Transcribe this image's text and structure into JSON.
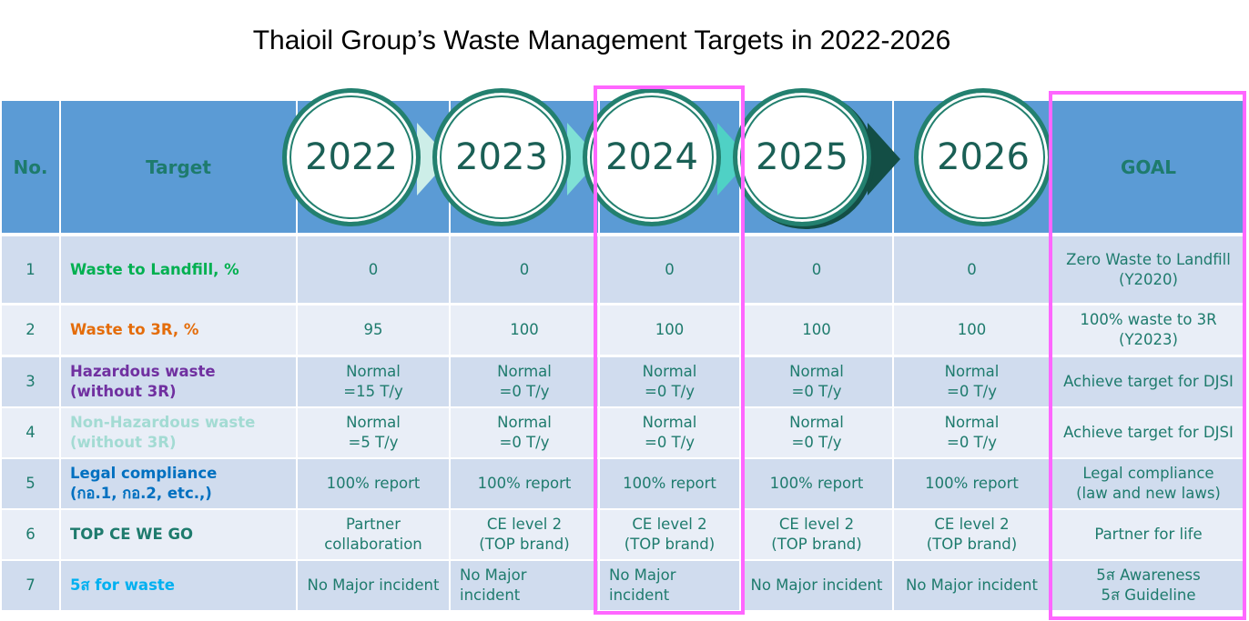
{
  "title": "Thaioil Group’s Waste Management Targets in 2022-2026",
  "header": {
    "no": "No.",
    "target": "Target",
    "years": [
      "2022",
      "2023",
      "2024",
      "2025",
      "2026"
    ],
    "goal": "GOAL"
  },
  "colors": {
    "header_bg": "#5b9bd5",
    "row_odd": "#d0dcee",
    "row_even": "#e9eef7",
    "text": "#1e7b6d",
    "highlight": "#ff66ff"
  },
  "rows": [
    {
      "no": "1",
      "target": "Waste to Landfill, %",
      "target_color": "#00b050",
      "values": [
        "0",
        "0",
        "0",
        "0",
        "0"
      ],
      "goal": "Zero Waste to Landfill\n(Y2020)"
    },
    {
      "no": "2",
      "target": "Waste to 3R, %",
      "target_color": "#e46c0a",
      "values": [
        "95",
        "100",
        "100",
        "100",
        "100"
      ],
      "goal": "100% waste to 3R\n(Y2023)"
    },
    {
      "no": "3",
      "target": "Hazardous waste\n(without 3R)",
      "target_color": "#7030a0",
      "values": [
        "Normal\n=15 T/y",
        "Normal\n=0 T/y",
        "Normal\n=0 T/y",
        "Normal\n=0 T/y",
        "Normal\n=0 T/y"
      ],
      "goal": "Achieve target for DJSI"
    },
    {
      "no": "4",
      "target": "Non-Hazardous waste\n(without 3R)",
      "target_color": "#a3dbd3",
      "values": [
        "Normal\n=5 T/y",
        "Normal\n=0 T/y",
        "Normal\n=0 T/y",
        "Normal\n=0 T/y",
        "Normal\n=0 T/y"
      ],
      "goal": "Achieve target for DJSI"
    },
    {
      "no": "5",
      "target": "Legal compliance\n(กอ.1, กอ.2, etc.,)",
      "target_color": "#0070c0",
      "values": [
        "100% report",
        "100% report",
        "100% report",
        "100% report",
        "100% report"
      ],
      "goal": "Legal compliance\n(law and new laws)"
    },
    {
      "no": "6",
      "target": "TOP CE WE GO",
      "target_color": "#1e7b6d",
      "values": [
        "Partner\ncollaboration",
        "CE level 2\n(TOP brand)",
        "CE level 2\n(TOP brand)",
        "CE level 2\n(TOP brand)",
        "CE level 2\n(TOP brand)"
      ],
      "goal": "Partner for life"
    },
    {
      "no": "7",
      "target": "5ส for waste",
      "target_color": "#00b0f0",
      "values": [
        "No Major incident",
        "No Major\nincident",
        "No Major\nincident",
        "No Major incident",
        "No Major incident"
      ],
      "goal": "5ส Awareness\n5ส Guideline"
    }
  ]
}
